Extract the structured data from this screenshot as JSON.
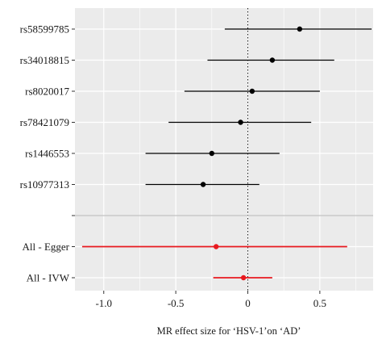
{
  "chart_data": {
    "type": "forest",
    "xlabel": "MR effect size for ‘HSV-1’on ‘AD’",
    "ylabel": "",
    "title": "",
    "xlim": [
      -1.2,
      0.87
    ],
    "xticks": [
      -1.0,
      -0.5,
      0.0,
      0.5
    ],
    "xtick_labels": [
      "-1.0",
      "-0.5",
      "0",
      "0.5"
    ],
    "reference_line": 0,
    "grid": true,
    "colors": {
      "snp": "#000000",
      "summary": "#e8191f",
      "panel": "#ebebeb",
      "gridline": "#ffffff"
    },
    "rows": [
      {
        "label": "rs58599785",
        "estimate": 0.36,
        "lower": -0.16,
        "upper": 0.86,
        "kind": "snp"
      },
      {
        "label": "rs34018815",
        "estimate": 0.17,
        "lower": -0.28,
        "upper": 0.6,
        "kind": "snp"
      },
      {
        "label": "rs8020017",
        "estimate": 0.03,
        "lower": -0.44,
        "upper": 0.5,
        "kind": "snp"
      },
      {
        "label": "rs78421079",
        "estimate": -0.05,
        "lower": -0.55,
        "upper": 0.44,
        "kind": "snp"
      },
      {
        "label": "rs1446553",
        "estimate": -0.25,
        "lower": -0.71,
        "upper": 0.22,
        "kind": "snp"
      },
      {
        "label": "rs10977313",
        "estimate": -0.31,
        "lower": -0.71,
        "upper": 0.08,
        "kind": "snp"
      },
      {
        "label": "",
        "kind": "separator"
      },
      {
        "label": "All - Egger",
        "estimate": -0.22,
        "lower": -1.15,
        "upper": 0.69,
        "kind": "summary"
      },
      {
        "label": "All - IVW",
        "estimate": -0.03,
        "lower": -0.24,
        "upper": 0.17,
        "kind": "summary"
      }
    ]
  }
}
